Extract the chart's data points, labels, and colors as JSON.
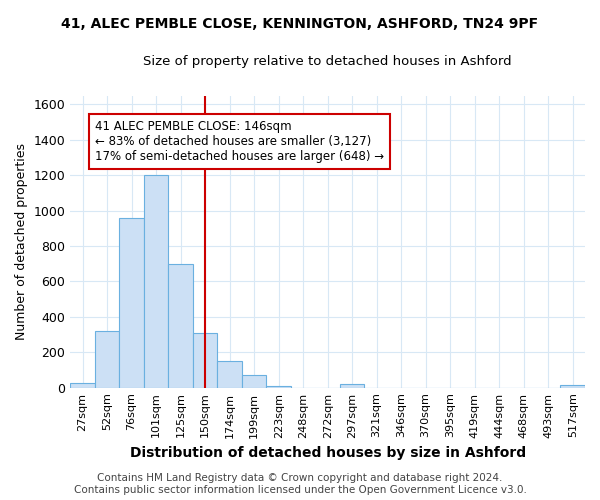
{
  "title_line1": "41, ALEC PEMBLE CLOSE, KENNINGTON, ASHFORD, TN24 9PF",
  "title_line2": "Size of property relative to detached houses in Ashford",
  "xlabel": "Distribution of detached houses by size in Ashford",
  "ylabel": "Number of detached properties",
  "categories": [
    "27sqm",
    "52sqm",
    "76sqm",
    "101sqm",
    "125sqm",
    "150sqm",
    "174sqm",
    "199sqm",
    "223sqm",
    "248sqm",
    "272sqm",
    "297sqm",
    "321sqm",
    "346sqm",
    "370sqm",
    "395sqm",
    "419sqm",
    "444sqm",
    "468sqm",
    "493sqm",
    "517sqm"
  ],
  "values": [
    25,
    320,
    960,
    1200,
    700,
    310,
    150,
    72,
    12,
    0,
    0,
    20,
    0,
    0,
    0,
    0,
    0,
    0,
    0,
    0,
    14
  ],
  "bar_color": "#cce0f5",
  "bar_edge_color": "#6ab0e0",
  "vline_x": 5,
  "vline_color": "#cc0000",
  "annotation_line1": "41 ALEC PEMBLE CLOSE: 146sqm",
  "annotation_line2": "← 83% of detached houses are smaller (3,127)",
  "annotation_line3": "17% of semi-detached houses are larger (648) →",
  "annotation_box_color": "white",
  "annotation_box_edge_color": "#cc0000",
  "footer_line1": "Contains HM Land Registry data © Crown copyright and database right 2024.",
  "footer_line2": "Contains public sector information licensed under the Open Government Licence v3.0.",
  "ylim": [
    0,
    1650
  ],
  "background_color": "#ffffff",
  "grid_color": "#d8e8f5",
  "title_fontsize": 10,
  "subtitle_fontsize": 9.5,
  "xlabel_fontsize": 10,
  "ylabel_fontsize": 9,
  "tick_fontsize": 8,
  "footer_fontsize": 7.5
}
